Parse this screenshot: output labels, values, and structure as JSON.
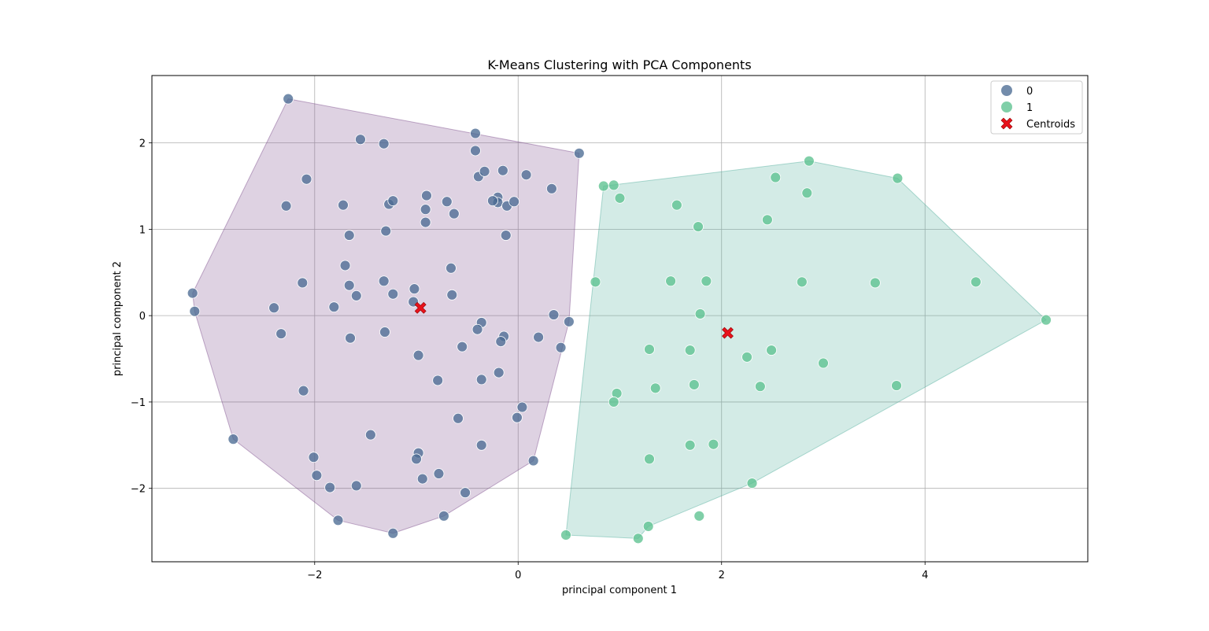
{
  "chart_data": {
    "type": "scatter",
    "title": "K-Means Clustering with PCA Components",
    "xlabel": "principal component 1",
    "ylabel": "principal component 2",
    "xlim": [
      -3.6,
      5.6
    ],
    "ylim": [
      -2.85,
      2.78
    ],
    "xticks": [
      -2,
      0,
      2,
      4
    ],
    "yticks": [
      -2,
      -1,
      0,
      1,
      2
    ],
    "grid": true,
    "legend_position": "top-right",
    "series": [
      {
        "name": "0",
        "color": "#4c6b93",
        "hull_color": "#7b4a8a",
        "points": [
          [
            -2.26,
            2.51
          ],
          [
            -1.55,
            2.04
          ],
          [
            -1.32,
            1.99
          ],
          [
            -0.42,
            2.11
          ],
          [
            -0.42,
            1.91
          ],
          [
            0.6,
            1.88
          ],
          [
            -2.08,
            1.58
          ],
          [
            -0.39,
            1.61
          ],
          [
            -0.33,
            1.67
          ],
          [
            -0.15,
            1.68
          ],
          [
            0.08,
            1.63
          ],
          [
            0.33,
            1.47
          ],
          [
            -2.28,
            1.27
          ],
          [
            -1.72,
            1.28
          ],
          [
            -1.27,
            1.29
          ],
          [
            -1.23,
            1.33
          ],
          [
            -0.9,
            1.39
          ],
          [
            -0.7,
            1.32
          ],
          [
            -0.2,
            1.37
          ],
          [
            -0.2,
            1.31
          ],
          [
            -0.25,
            1.33
          ],
          [
            -0.11,
            1.27
          ],
          [
            -0.04,
            1.32
          ],
          [
            -0.91,
            1.23
          ],
          [
            -0.63,
            1.18
          ],
          [
            -0.91,
            1.08
          ],
          [
            -1.66,
            0.93
          ],
          [
            -1.3,
            0.98
          ],
          [
            -0.12,
            0.93
          ],
          [
            -1.7,
            0.58
          ],
          [
            -0.66,
            0.55
          ],
          [
            -2.12,
            0.38
          ],
          [
            -1.66,
            0.35
          ],
          [
            -1.32,
            0.4
          ],
          [
            -1.02,
            0.31
          ],
          [
            -3.2,
            0.26
          ],
          [
            -1.59,
            0.23
          ],
          [
            -1.23,
            0.25
          ],
          [
            -0.65,
            0.24
          ],
          [
            -1.03,
            0.16
          ],
          [
            -2.4,
            0.09
          ],
          [
            -1.81,
            0.1
          ],
          [
            -3.18,
            0.05
          ],
          [
            0.35,
            0.01
          ],
          [
            0.5,
            -0.07
          ],
          [
            -0.36,
            -0.08
          ],
          [
            -0.4,
            -0.16
          ],
          [
            -2.33,
            -0.21
          ],
          [
            -1.65,
            -0.26
          ],
          [
            -1.31,
            -0.19
          ],
          [
            -0.14,
            -0.24
          ],
          [
            -0.17,
            -0.3
          ],
          [
            0.2,
            -0.25
          ],
          [
            -0.55,
            -0.36
          ],
          [
            0.42,
            -0.37
          ],
          [
            -0.98,
            -0.46
          ],
          [
            -0.19,
            -0.66
          ],
          [
            -0.79,
            -0.75
          ],
          [
            -0.36,
            -0.74
          ],
          [
            -2.11,
            -0.87
          ],
          [
            0.04,
            -1.06
          ],
          [
            -0.01,
            -1.18
          ],
          [
            -0.59,
            -1.19
          ],
          [
            -1.45,
            -1.38
          ],
          [
            -2.8,
            -1.43
          ],
          [
            -0.36,
            -1.5
          ],
          [
            -2.01,
            -1.64
          ],
          [
            -0.98,
            -1.59
          ],
          [
            -1.0,
            -1.66
          ],
          [
            0.15,
            -1.68
          ],
          [
            -1.98,
            -1.85
          ],
          [
            -0.78,
            -1.83
          ],
          [
            -0.94,
            -1.89
          ],
          [
            -1.85,
            -1.99
          ],
          [
            -1.59,
            -1.97
          ],
          [
            -0.52,
            -2.05
          ],
          [
            -1.77,
            -2.37
          ],
          [
            -0.73,
            -2.32
          ],
          [
            -1.23,
            -2.52
          ]
        ],
        "hull": [
          [
            -2.26,
            2.51
          ],
          [
            0.6,
            1.88
          ],
          [
            0.5,
            -0.07
          ],
          [
            0.15,
            -1.68
          ],
          [
            -0.73,
            -2.32
          ],
          [
            -1.23,
            -2.52
          ],
          [
            -1.77,
            -2.37
          ],
          [
            -2.8,
            -1.43
          ],
          [
            -3.18,
            0.05
          ],
          [
            -3.2,
            0.26
          ]
        ]
      },
      {
        "name": "1",
        "color": "#5cc18f",
        "hull_color": "#4fae9c",
        "points": [
          [
            2.86,
            1.79
          ],
          [
            2.53,
            1.6
          ],
          [
            3.73,
            1.59
          ],
          [
            0.84,
            1.5
          ],
          [
            0.94,
            1.51
          ],
          [
            1.0,
            1.36
          ],
          [
            2.84,
            1.42
          ],
          [
            1.56,
            1.28
          ],
          [
            2.45,
            1.11
          ],
          [
            1.77,
            1.03
          ],
          [
            0.76,
            0.39
          ],
          [
            1.5,
            0.4
          ],
          [
            1.85,
            0.4
          ],
          [
            2.79,
            0.39
          ],
          [
            3.51,
            0.38
          ],
          [
            4.5,
            0.39
          ],
          [
            1.79,
            0.02
          ],
          [
            5.19,
            -0.05
          ],
          [
            1.29,
            -0.39
          ],
          [
            1.69,
            -0.4
          ],
          [
            2.49,
            -0.4
          ],
          [
            2.25,
            -0.48
          ],
          [
            3.0,
            -0.55
          ],
          [
            1.35,
            -0.84
          ],
          [
            1.73,
            -0.8
          ],
          [
            2.38,
            -0.82
          ],
          [
            3.72,
            -0.81
          ],
          [
            0.97,
            -0.9
          ],
          [
            0.94,
            -1.0
          ],
          [
            1.29,
            -1.66
          ],
          [
            1.69,
            -1.5
          ],
          [
            1.92,
            -1.49
          ],
          [
            2.3,
            -1.94
          ],
          [
            1.28,
            -2.44
          ],
          [
            1.78,
            -2.32
          ],
          [
            0.47,
            -2.54
          ],
          [
            1.18,
            -2.58
          ]
        ],
        "hull": [
          [
            0.84,
            1.5
          ],
          [
            2.86,
            1.79
          ],
          [
            3.73,
            1.59
          ],
          [
            5.19,
            -0.05
          ],
          [
            2.3,
            -1.94
          ],
          [
            1.28,
            -2.44
          ],
          [
            1.18,
            -2.58
          ],
          [
            0.47,
            -2.54
          ]
        ]
      }
    ],
    "centroids": {
      "name": "Centroids",
      "color": "#e8121b",
      "points": [
        [
          -0.96,
          0.09
        ],
        [
          2.06,
          -0.2
        ]
      ]
    }
  }
}
